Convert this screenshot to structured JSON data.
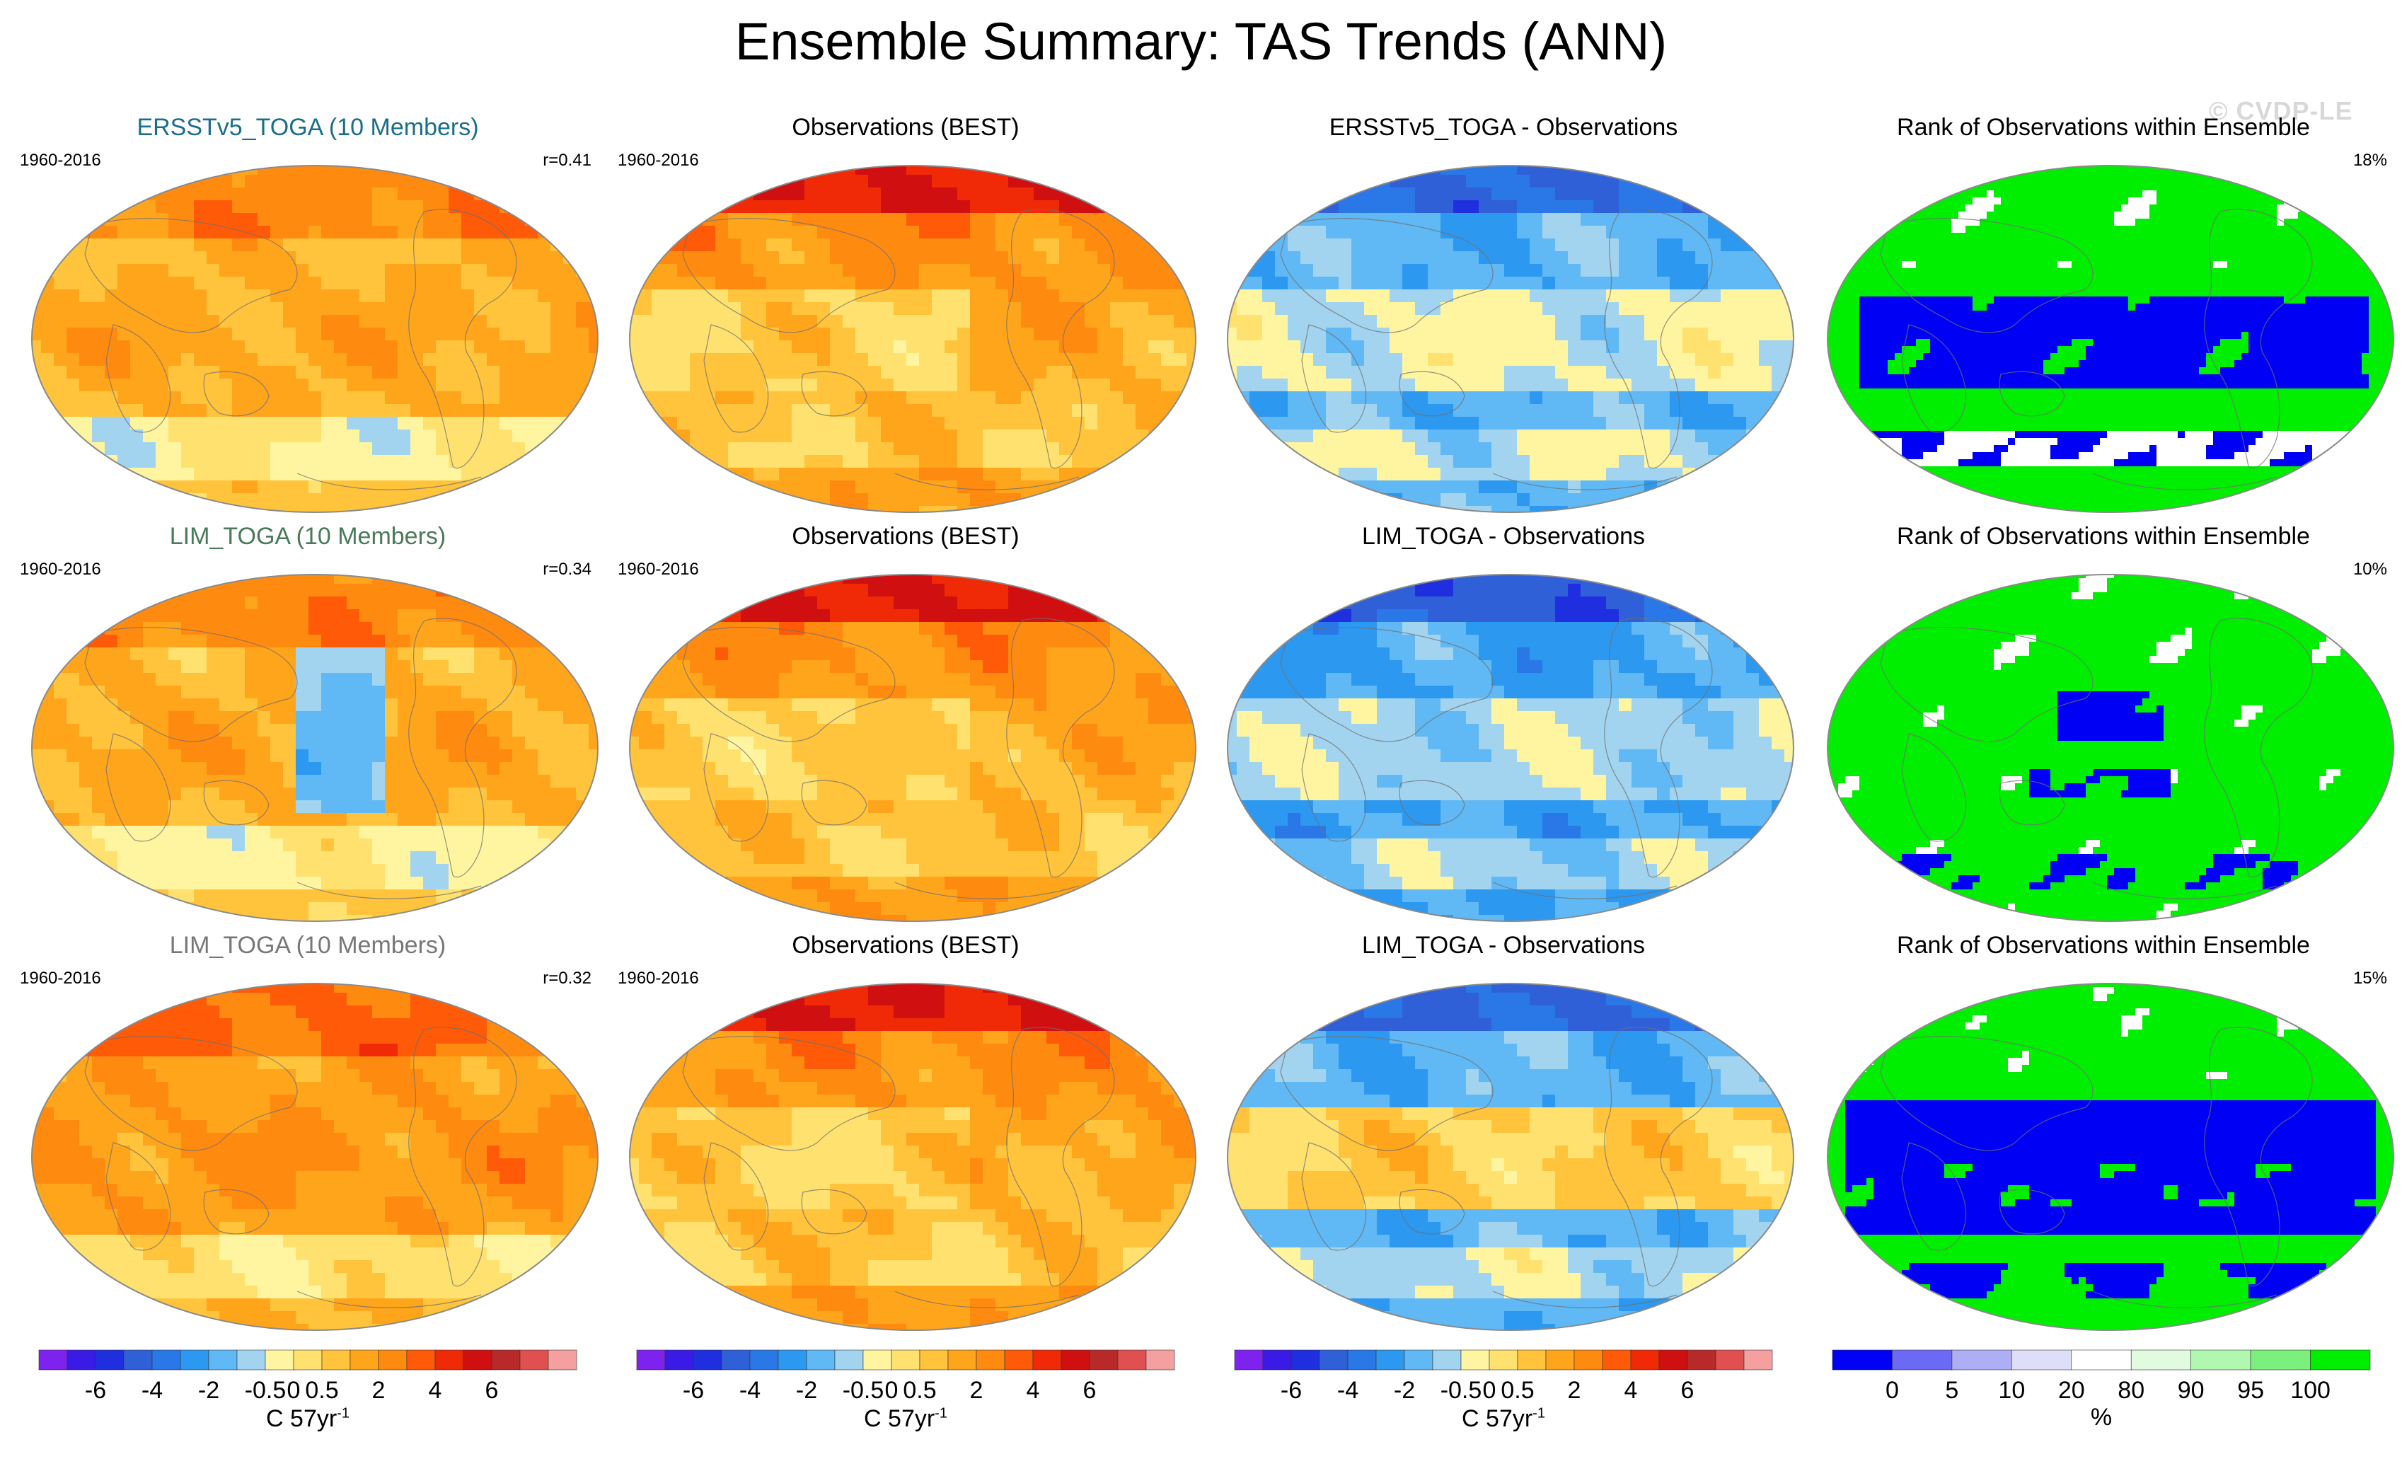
{
  "title": "Ensemble Summary: TAS Trends (ANN)",
  "watermark": "© CVDP-LE",
  "colors": {
    "trend": [
      "#7e22f0",
      "#3a1ae6",
      "#1f2fe0",
      "#3060d8",
      "#2a78e8",
      "#2c98f0",
      "#60b8f4",
      "#a2d4f0",
      "#fff5a0",
      "#ffe170",
      "#ffc43c",
      "#ffa51c",
      "#ff8a10",
      "#ff5a08",
      "#f02a06",
      "#d01010",
      "#b82a2a",
      "#e05050",
      "#f4a0a0"
    ],
    "rank": [
      "#0000f5",
      "#6a6af5",
      "#aeaef5",
      "#dedef8",
      "#ffffff",
      "#e0fbe0",
      "#b0f7b0",
      "#7cf07c",
      "#00ee00"
    ],
    "panel_title_ensemble_1": "#1a6e8a",
    "panel_title_ensemble_2": "#4a7a5a",
    "panel_title_ensemble_3": "#777777"
  },
  "rows": [
    {
      "ensemble": {
        "title": "ERSSTv5_TOGA (10 Members)",
        "period": "1960-2016",
        "corr": "r=0.41",
        "title_color": "#1a6e8a"
      },
      "obs": {
        "title": "Observations (BEST)",
        "period": "1960-2016"
      },
      "diff": {
        "title": "ERSSTv5_TOGA - Observations"
      },
      "rank": {
        "title": "Rank of Observations within Ensemble",
        "pct": "18%"
      }
    },
    {
      "ensemble": {
        "title": "LIM_TOGA (10 Members)",
        "period": "1960-2016",
        "corr": "r=0.34",
        "title_color": "#4a7a5a"
      },
      "obs": {
        "title": "Observations (BEST)",
        "period": "1960-2016"
      },
      "diff": {
        "title": "LIM_TOGA - Observations"
      },
      "rank": {
        "title": "Rank of Observations within Ensemble",
        "pct": "10%"
      }
    },
    {
      "ensemble": {
        "title": "LIM_TOGA (10 Members)",
        "period": "1960-2016",
        "corr": "r=0.32",
        "title_color": "#777777"
      },
      "obs": {
        "title": "Observations (BEST)",
        "period": "1960-2016"
      },
      "diff": {
        "title": "LIM_TOGA - Observations"
      },
      "rank": {
        "title": "Rank of Observations within Ensemble",
        "pct": "15%"
      }
    }
  ],
  "colorbars": {
    "trend": {
      "ticks": [
        "-6",
        "-4",
        "-2",
        "-0.5",
        "0",
        "0.5",
        "2",
        "4",
        "6"
      ],
      "unit_base": "C 57yr",
      "unit_exp": "-1"
    },
    "rank": {
      "ticks": [
        "0",
        "5",
        "10",
        "20",
        "80",
        "90",
        "95",
        "100"
      ],
      "unit": "%"
    }
  }
}
